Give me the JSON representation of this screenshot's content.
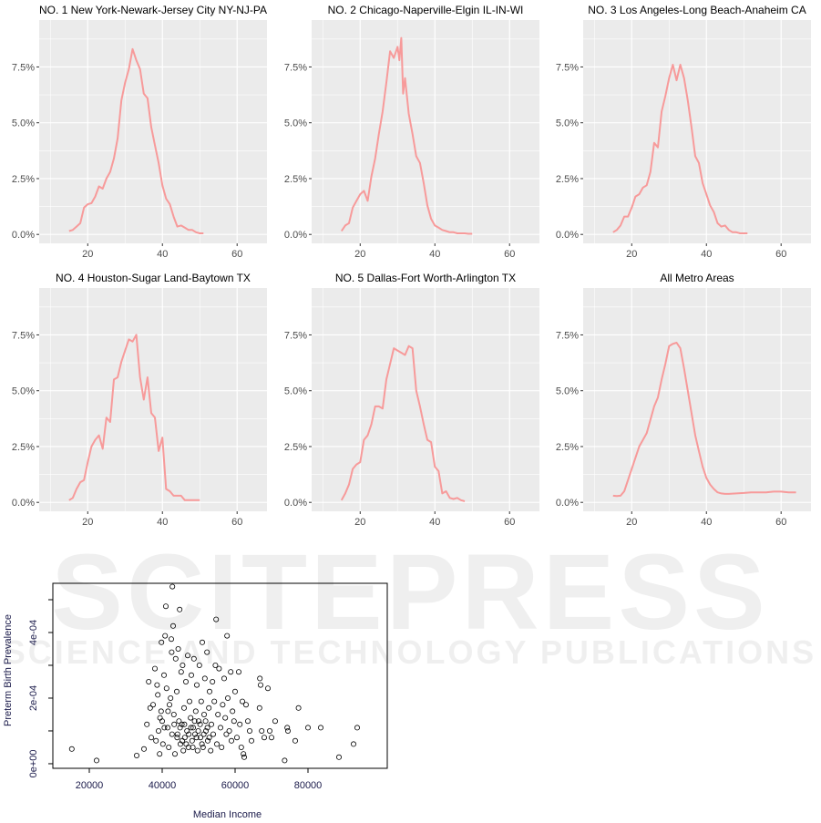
{
  "watermark": {
    "main": "SCITEPRESS",
    "sub": "SCIENCE AND TECHNOLOGY PUBLICATIONS"
  },
  "chart_data": [
    {
      "type": "line",
      "title": "NO. 1 New York-Newark-Jersey City NY-NJ-PA",
      "xlim": [
        7,
        68
      ],
      "ylim": [
        -0.4,
        9.6
      ],
      "xticks": [
        20,
        40,
        60
      ],
      "yticks": [
        0,
        2.5,
        5,
        7.5
      ],
      "ytick_labels": [
        "0.0%",
        "2.5%",
        "5.0%",
        "7.5%"
      ],
      "grid": true,
      "color": "#F79A9A",
      "x": [
        15,
        16,
        17,
        18,
        19,
        20,
        21,
        22,
        23,
        24,
        25,
        26,
        27,
        28,
        29,
        30,
        31,
        32,
        33,
        34,
        35,
        36,
        37,
        38,
        39,
        40,
        41,
        42,
        43,
        44,
        45,
        46,
        47,
        48,
        49,
        50,
        51
      ],
      "y": [
        0.15,
        0.2,
        0.35,
        0.5,
        1.2,
        1.35,
        1.4,
        1.7,
        2.15,
        2.05,
        2.5,
        2.8,
        3.4,
        4.3,
        6.0,
        6.8,
        7.4,
        8.3,
        7.8,
        7.4,
        6.3,
        6.1,
        4.8,
        4.0,
        3.2,
        2.2,
        1.6,
        1.35,
        0.8,
        0.35,
        0.4,
        0.3,
        0.2,
        0.2,
        0.1,
        0.05,
        0.05
      ]
    },
    {
      "type": "line",
      "title": "NO. 2 Chicago-Naperville-Elgin IL-IN-WI",
      "xlim": [
        7,
        68
      ],
      "ylim": [
        -0.4,
        9.6
      ],
      "xticks": [
        20,
        40,
        60
      ],
      "yticks": [
        0,
        2.5,
        5,
        7.5
      ],
      "ytick_labels": [
        "0.0%",
        "2.5%",
        "5.0%",
        "7.5%"
      ],
      "grid": true,
      "color": "#F79A9A",
      "x": [
        15,
        16,
        17,
        18,
        19,
        20,
        21,
        22,
        23,
        24,
        25,
        26,
        27,
        28,
        29,
        30,
        30.5,
        31,
        31.5,
        32,
        33,
        34,
        35,
        36,
        37,
        38,
        39,
        40,
        41,
        42,
        43,
        44,
        45,
        46,
        47,
        48,
        49,
        50
      ],
      "y": [
        0.15,
        0.4,
        0.5,
        1.2,
        1.5,
        1.8,
        1.95,
        1.5,
        2.6,
        3.4,
        4.5,
        5.5,
        6.8,
        8.2,
        7.9,
        8.4,
        7.8,
        8.8,
        6.3,
        7.0,
        5.4,
        4.5,
        3.5,
        3.2,
        2.3,
        1.3,
        0.7,
        0.4,
        0.3,
        0.2,
        0.15,
        0.1,
        0.1,
        0.05,
        0.05,
        0.05,
        0.03,
        0.03
      ]
    },
    {
      "type": "line",
      "title": "NO. 3 Los Angeles-Long Beach-Anaheim CA",
      "xlim": [
        7,
        68
      ],
      "ylim": [
        -0.4,
        9.6
      ],
      "xticks": [
        20,
        40,
        60
      ],
      "yticks": [
        0,
        2.5,
        5,
        7.5
      ],
      "ytick_labels": [
        "0.0%",
        "2.5%",
        "5.0%",
        "7.5%"
      ],
      "grid": true,
      "color": "#F79A9A",
      "x": [
        15,
        16,
        17,
        18,
        19,
        20,
        21,
        22,
        23,
        24,
        25,
        26,
        27,
        28,
        29,
        30,
        31,
        32,
        33,
        34,
        35,
        36,
        37,
        38,
        39,
        40,
        41,
        42,
        43,
        44,
        45,
        46,
        47,
        48,
        49,
        50,
        51
      ],
      "y": [
        0.1,
        0.2,
        0.4,
        0.8,
        0.8,
        1.2,
        1.7,
        1.8,
        2.1,
        2.2,
        2.8,
        4.1,
        3.9,
        5.5,
        6.2,
        7.0,
        7.6,
        6.9,
        7.6,
        7.0,
        6.0,
        4.8,
        3.5,
        3.2,
        2.3,
        1.8,
        1.3,
        1.0,
        0.5,
        0.35,
        0.4,
        0.2,
        0.1,
        0.1,
        0.05,
        0.05,
        0.05
      ]
    },
    {
      "type": "line",
      "title": "NO. 4 Houston-Sugar Land-Baytown TX",
      "xlim": [
        7,
        68
      ],
      "ylim": [
        -0.4,
        9.6
      ],
      "xticks": [
        20,
        40,
        60
      ],
      "yticks": [
        0,
        2.5,
        5,
        7.5
      ],
      "ytick_labels": [
        "0.0%",
        "2.5%",
        "5.0%",
        "7.5%"
      ],
      "grid": true,
      "color": "#F79A9A",
      "x": [
        15,
        16,
        17,
        18,
        19,
        20,
        21,
        22,
        23,
        24,
        25,
        26,
        27,
        28,
        29,
        30,
        31,
        32,
        33,
        34,
        35,
        36,
        37,
        38,
        39,
        40,
        41,
        42,
        43,
        44,
        45,
        46,
        47,
        48,
        49,
        50
      ],
      "y": [
        0.1,
        0.2,
        0.6,
        0.9,
        1.0,
        1.8,
        2.5,
        2.8,
        3.0,
        2.4,
        3.8,
        3.6,
        5.5,
        5.6,
        6.3,
        6.8,
        7.3,
        7.2,
        7.5,
        5.6,
        4.6,
        5.6,
        4.0,
        3.8,
        2.3,
        2.9,
        0.6,
        0.5,
        0.3,
        0.3,
        0.3,
        0.1,
        0.1,
        0.1,
        0.1,
        0.1
      ]
    },
    {
      "type": "line",
      "title": "NO. 5 Dallas-Fort Worth-Arlington TX",
      "xlim": [
        7,
        68
      ],
      "ylim": [
        -0.4,
        9.6
      ],
      "xticks": [
        20,
        40,
        60
      ],
      "yticks": [
        0,
        2.5,
        5,
        7.5
      ],
      "ytick_labels": [
        "0.0%",
        "2.5%",
        "5.0%",
        "7.5%"
      ],
      "grid": true,
      "color": "#F79A9A",
      "x": [
        15,
        16,
        17,
        18,
        19,
        20,
        21,
        22,
        23,
        24,
        25,
        26,
        27,
        28,
        29,
        30,
        31,
        32,
        33,
        34,
        35,
        36,
        37,
        38,
        39,
        40,
        41,
        42,
        43,
        44,
        45,
        46,
        47,
        48
      ],
      "y": [
        0.1,
        0.4,
        0.8,
        1.5,
        1.7,
        1.8,
        2.8,
        3.0,
        3.5,
        4.3,
        4.3,
        4.2,
        5.5,
        6.2,
        6.9,
        6.8,
        6.7,
        6.6,
        7.0,
        6.9,
        5.0,
        4.3,
        3.5,
        2.8,
        2.7,
        1.6,
        1.4,
        0.4,
        0.5,
        0.2,
        0.15,
        0.2,
        0.1,
        0.05
      ]
    },
    {
      "type": "line",
      "title": "All Metro Areas",
      "xlim": [
        7,
        68
      ],
      "ylim": [
        -0.4,
        9.6
      ],
      "xticks": [
        20,
        40,
        60
      ],
      "yticks": [
        0,
        2.5,
        5,
        7.5
      ],
      "ytick_labels": [
        "0.0%",
        "2.5%",
        "5.0%",
        "7.5%"
      ],
      "grid": true,
      "color": "#F79A9A",
      "x": [
        15,
        16,
        17,
        18,
        19,
        20,
        21,
        22,
        23,
        24,
        25,
        26,
        27,
        28,
        29,
        30,
        31,
        32,
        33,
        34,
        35,
        36,
        37,
        38,
        39,
        40,
        41,
        42,
        43,
        44,
        45,
        46,
        48,
        50,
        52,
        54,
        56,
        58,
        60,
        62,
        64
      ],
      "y": [
        0.3,
        0.28,
        0.3,
        0.5,
        1.0,
        1.5,
        2.0,
        2.5,
        2.8,
        3.1,
        3.7,
        4.3,
        4.7,
        5.5,
        6.2,
        7.0,
        7.1,
        7.15,
        6.9,
        6.0,
        5.0,
        4.0,
        3.0,
        2.3,
        1.6,
        1.1,
        0.8,
        0.6,
        0.45,
        0.4,
        0.38,
        0.38,
        0.4,
        0.42,
        0.45,
        0.45,
        0.45,
        0.48,
        0.48,
        0.45,
        0.45
      ]
    },
    {
      "type": "scatter",
      "xlabel": "Median Income",
      "ylabel": "Preterm Birth Prevalence",
      "xlim": [
        10000,
        101750
      ],
      "ylim": [
        -1.4e-05,
        0.00055
      ],
      "xticks": [
        20000,
        40000,
        60000,
        80000
      ],
      "xtick_labels": [
        "20000",
        "40000",
        "60000",
        "80000"
      ],
      "yticks": [
        0,
        0.0001,
        0.0002,
        0.0003,
        0.0004,
        0.0005
      ],
      "ytick_labels": [
        "0e+00",
        "",
        "2e-04",
        "",
        "4e-04",
        ""
      ],
      "marker": "open-circle",
      "points": [
        [
          15200,
          4.5e-05
        ],
        [
          22000,
          1e-05
        ],
        [
          33000,
          2.5e-05
        ],
        [
          35000,
          4.5e-05
        ],
        [
          35800,
          0.00012
        ],
        [
          36300,
          0.00025
        ],
        [
          36700,
          0.00017
        ],
        [
          37000,
          8e-05
        ],
        [
          37500,
          0.00018
        ],
        [
          38000,
          0.00029
        ],
        [
          38300,
          7e-05
        ],
        [
          38600,
          0.00024
        ],
        [
          38800,
          0.00021
        ],
        [
          39000,
          0.0001
        ],
        [
          39300,
          3e-05
        ],
        [
          39700,
          0.00016
        ],
        [
          39800,
          0.00037
        ],
        [
          40000,
          0.00013
        ],
        [
          40200,
          6e-05
        ],
        [
          40500,
          0.00027
        ],
        [
          40800,
          0.00039
        ],
        [
          41000,
          0.00048
        ],
        [
          41200,
          0.00023
        ],
        [
          41500,
          0.00011
        ],
        [
          41800,
          5e-05
        ],
        [
          42000,
          0.00018
        ],
        [
          42300,
          0.0002
        ],
        [
          42500,
          0.00038
        ],
        [
          42600,
          0.00034
        ],
        [
          42800,
          0.00054
        ],
        [
          43000,
          0.00042
        ],
        [
          43200,
          0.00015
        ],
        [
          43500,
          3e-05
        ],
        [
          43700,
          0.00032
        ],
        [
          44000,
          0.00022
        ],
        [
          44200,
          9e-05
        ],
        [
          44400,
          0.00035
        ],
        [
          44600,
          0.00013
        ],
        [
          44800,
          0.00047
        ],
        [
          45000,
          6e-05
        ],
        [
          45200,
          0.00028
        ],
        [
          45400,
          0.00012
        ],
        [
          45600,
          0.0003
        ],
        [
          45800,
          4e-05
        ],
        [
          46000,
          0.00017
        ],
        [
          46200,
          8e-05
        ],
        [
          46500,
          0.00025
        ],
        [
          46800,
          0.0001
        ],
        [
          47000,
          0.00033
        ],
        [
          47200,
          5e-05
        ],
        [
          47500,
          0.00019
        ],
        [
          47800,
          0.00014
        ],
        [
          48000,
          0.00027
        ],
        [
          48200,
          7e-05
        ],
        [
          48500,
          0.00011
        ],
        [
          48700,
          0.00032
        ],
        [
          49000,
          9e-05
        ],
        [
          49200,
          0.00016
        ],
        [
          49500,
          0.00024
        ],
        [
          49700,
          4e-05
        ],
        [
          50000,
          0.00013
        ],
        [
          50200,
          0.0003
        ],
        [
          50500,
          8e-05
        ],
        [
          50700,
          0.00019
        ],
        [
          51000,
          0.00037
        ],
        [
          51200,
          5e-05
        ],
        [
          51500,
          0.00015
        ],
        [
          51700,
          0.00026
        ],
        [
          52000,
          0.0001
        ],
        [
          52300,
          0.00034
        ],
        [
          52500,
          7e-05
        ],
        [
          52800,
          0.00017
        ],
        [
          53000,
          0.00022
        ],
        [
          53300,
          4e-05
        ],
        [
          53500,
          0.00012
        ],
        [
          53800,
          0.00025
        ],
        [
          54000,
          9e-05
        ],
        [
          54300,
          0.00019
        ],
        [
          54600,
          0.0003
        ],
        [
          54800,
          0.00044
        ],
        [
          55000,
          6e-05
        ],
        [
          55300,
          0.00015
        ],
        [
          55600,
          0.00029
        ],
        [
          56000,
          0.00011
        ],
        [
          56300,
          5e-05
        ],
        [
          56600,
          0.00018
        ],
        [
          57000,
          0.00026
        ],
        [
          57300,
          0.00014
        ],
        [
          57600,
          9e-05
        ],
        [
          57800,
          0.00039
        ],
        [
          58000,
          0.0002
        ],
        [
          58400,
          0.0001
        ],
        [
          58800,
          0.00028
        ],
        [
          59000,
          7e-05
        ],
        [
          59300,
          0.00016
        ],
        [
          59700,
          0.00013
        ],
        [
          60000,
          0.00022
        ],
        [
          60500,
          8e-05
        ],
        [
          61000,
          0.00028
        ],
        [
          61300,
          0.00012
        ],
        [
          61700,
          5e-05
        ],
        [
          62000,
          0.00019
        ],
        [
          62300,
          3e-05
        ],
        [
          62500,
          2e-05
        ],
        [
          63000,
          0.00018
        ],
        [
          63500,
          0.00013
        ],
        [
          64000,
          0.0001
        ],
        [
          64500,
          7e-05
        ],
        [
          66700,
          0.00017
        ],
        [
          66800,
          0.00026
        ],
        [
          67000,
          0.00024
        ],
        [
          67300,
          0.0001
        ],
        [
          68000,
          8e-05
        ],
        [
          69000,
          0.00023
        ],
        [
          69500,
          0.0001
        ],
        [
          70000,
          8e-05
        ],
        [
          71000,
          0.00013
        ],
        [
          73600,
          1e-05
        ],
        [
          74300,
          0.00011
        ],
        [
          74500,
          0.0001
        ],
        [
          76500,
          7e-05
        ],
        [
          77400,
          0.00017
        ],
        [
          80000,
          0.00011
        ],
        [
          83500,
          0.00011
        ],
        [
          88500,
          2e-05
        ],
        [
          92500,
          6e-05
        ],
        [
          93500,
          0.00011
        ],
        [
          44100,
          8e-05
        ],
        [
          44900,
          0.00011
        ],
        [
          45500,
          7e-05
        ],
        [
          46100,
          0.00012
        ],
        [
          46600,
          6e-05
        ],
        [
          47300,
          9e-05
        ],
        [
          47900,
          0.00011
        ],
        [
          48400,
          5e-05
        ],
        [
          48900,
          0.00013
        ],
        [
          49400,
          8e-05
        ],
        [
          49900,
          0.0001
        ],
        [
          50400,
          0.00012
        ],
        [
          50900,
          6e-05
        ],
        [
          51400,
          9e-05
        ],
        [
          51900,
          0.00013
        ],
        [
          52400,
          0.00011
        ],
        [
          52900,
          8e-05
        ],
        [
          43300,
          0.00012
        ],
        [
          42700,
          9e-05
        ],
        [
          41600,
          0.00016
        ],
        [
          40600,
          0.00011
        ],
        [
          39400,
          0.00014
        ]
      ]
    }
  ]
}
